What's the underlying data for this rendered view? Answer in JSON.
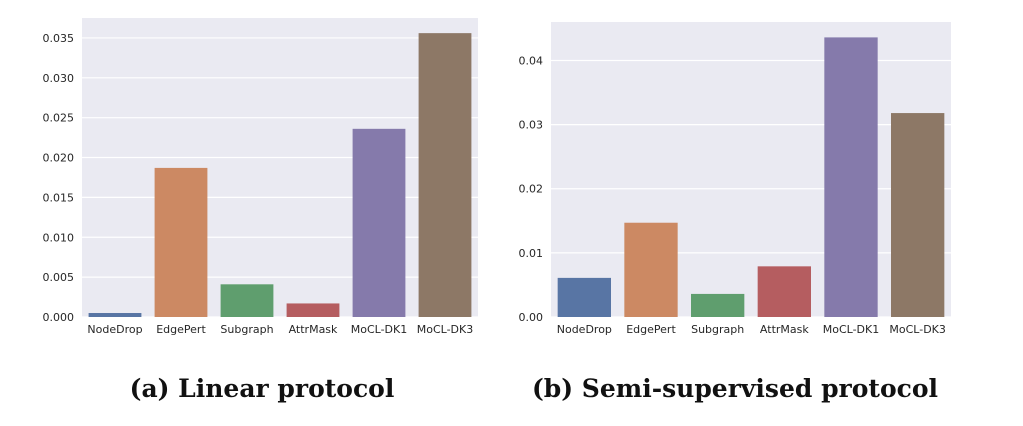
{
  "chart_data": [
    {
      "type": "bar",
      "caption": "(a) Linear protocol",
      "categories": [
        "NodeDrop",
        "EdgePert",
        "Subgraph",
        "AttrMask",
        "MoCL-DK1",
        "MoCL-DK3"
      ],
      "values": [
        0.0005,
        0.0187,
        0.0041,
        0.0017,
        0.0236,
        0.0356
      ],
      "colors": [
        "#5875a4",
        "#cc8963",
        "#5f9e6e",
        "#b55d60",
        "#857aab",
        "#8d7866"
      ],
      "ylim": [
        0,
        0.0375
      ],
      "yticks": [
        "0.000",
        "0.005",
        "0.010",
        "0.015",
        "0.020",
        "0.025",
        "0.030",
        "0.035"
      ],
      "grid": true,
      "xlabel": "",
      "ylabel": ""
    },
    {
      "type": "bar",
      "caption": "(b) Semi-supervised protocol",
      "categories": [
        "NodeDrop",
        "EdgePert",
        "Subgraph",
        "AttrMask",
        "MoCL-DK1",
        "MoCL-DK3"
      ],
      "values": [
        0.0061,
        0.0147,
        0.0036,
        0.0079,
        0.0436,
        0.0318
      ],
      "colors": [
        "#5875a4",
        "#cc8963",
        "#5f9e6e",
        "#b55d60",
        "#857aab",
        "#8d7866"
      ],
      "ylim": [
        0,
        0.046
      ],
      "yticks": [
        "0.00",
        "0.01",
        "0.02",
        "0.03",
        "0.04"
      ],
      "grid": true,
      "xlabel": "",
      "ylabel": ""
    }
  ]
}
